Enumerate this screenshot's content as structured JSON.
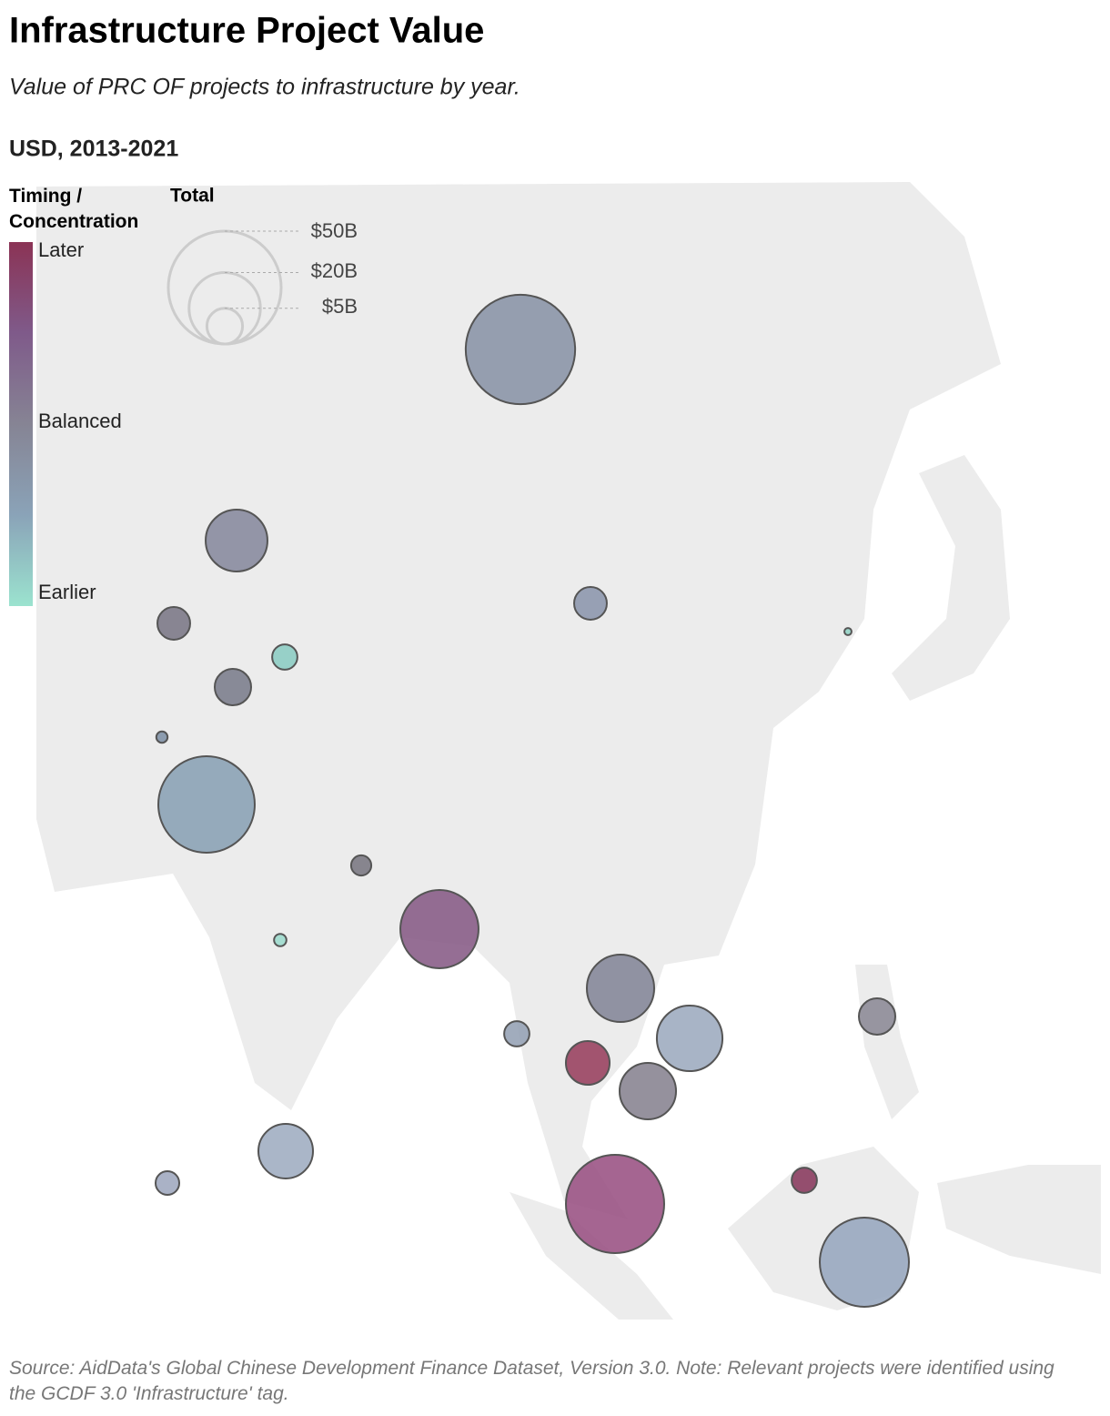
{
  "chart_data": {
    "type": "bubble_map",
    "title": "Infrastructure Project Value",
    "subtitle": "Value of PRC OF projects to infrastructure by year.",
    "unit_label": "USD, 2013-2021",
    "color_legend": {
      "title": "Timing / Concentration",
      "labels": [
        "Later",
        "Balanced",
        "Earlier"
      ],
      "colors": [
        "#8b3355",
        "#7f5a8a",
        "#868494",
        "#8aa3b8",
        "#9be3cf"
      ]
    },
    "size_legend": {
      "title": "Total",
      "sizes": [
        {
          "value": 50,
          "label": "$50B"
        },
        {
          "value": 20,
          "label": "$20B"
        },
        {
          "value": 5,
          "label": "$5B"
        }
      ]
    },
    "bubbles": [
      {
        "value": 47,
        "color": "#8c96a8"
      },
      {
        "value": 15,
        "color": "#8a8ca0"
      },
      {
        "value": 4.2,
        "color": "#7d7a88"
      },
      {
        "value": 2.5,
        "color": "#8ecdc4"
      },
      {
        "value": 5.2,
        "color": "#7d7f8e"
      },
      {
        "value": 0.5,
        "color": "#8293a8"
      },
      {
        "value": 36.5,
        "color": "#8ca3b6"
      },
      {
        "value": 1.6,
        "color": "#7c7a84"
      },
      {
        "value": 0.6,
        "color": "#9fdcce"
      },
      {
        "value": 24,
        "color": "#8a5e88"
      },
      {
        "value": 4.2,
        "color": "#8e98ae"
      },
      {
        "value": 0.2,
        "color": "#95d4c6"
      },
      {
        "value": 17.8,
        "color": "#86889a"
      },
      {
        "value": 16.9,
        "color": "#9eacc0"
      },
      {
        "value": 2.5,
        "color": "#97a3b6"
      },
      {
        "value": 7.5,
        "color": "#9a4462"
      },
      {
        "value": 12.5,
        "color": "#8a8592"
      },
      {
        "value": 5.2,
        "color": "#8e8c98"
      },
      {
        "value": 11.7,
        "color": "#a1aec2"
      },
      {
        "value": 2.2,
        "color": "#a1aac0"
      },
      {
        "value": 37.9,
        "color": "#9b5485"
      },
      {
        "value": 2.5,
        "color": "#8b3d60"
      },
      {
        "value": 31.2,
        "color": "#99a9c0"
      }
    ],
    "source": "Source: AidData's Global Chinese Development Finance Dataset, Version 3.0. Note: Relevant projects were identified using the GCDF 3.0 'Infrastructure' tag."
  }
}
